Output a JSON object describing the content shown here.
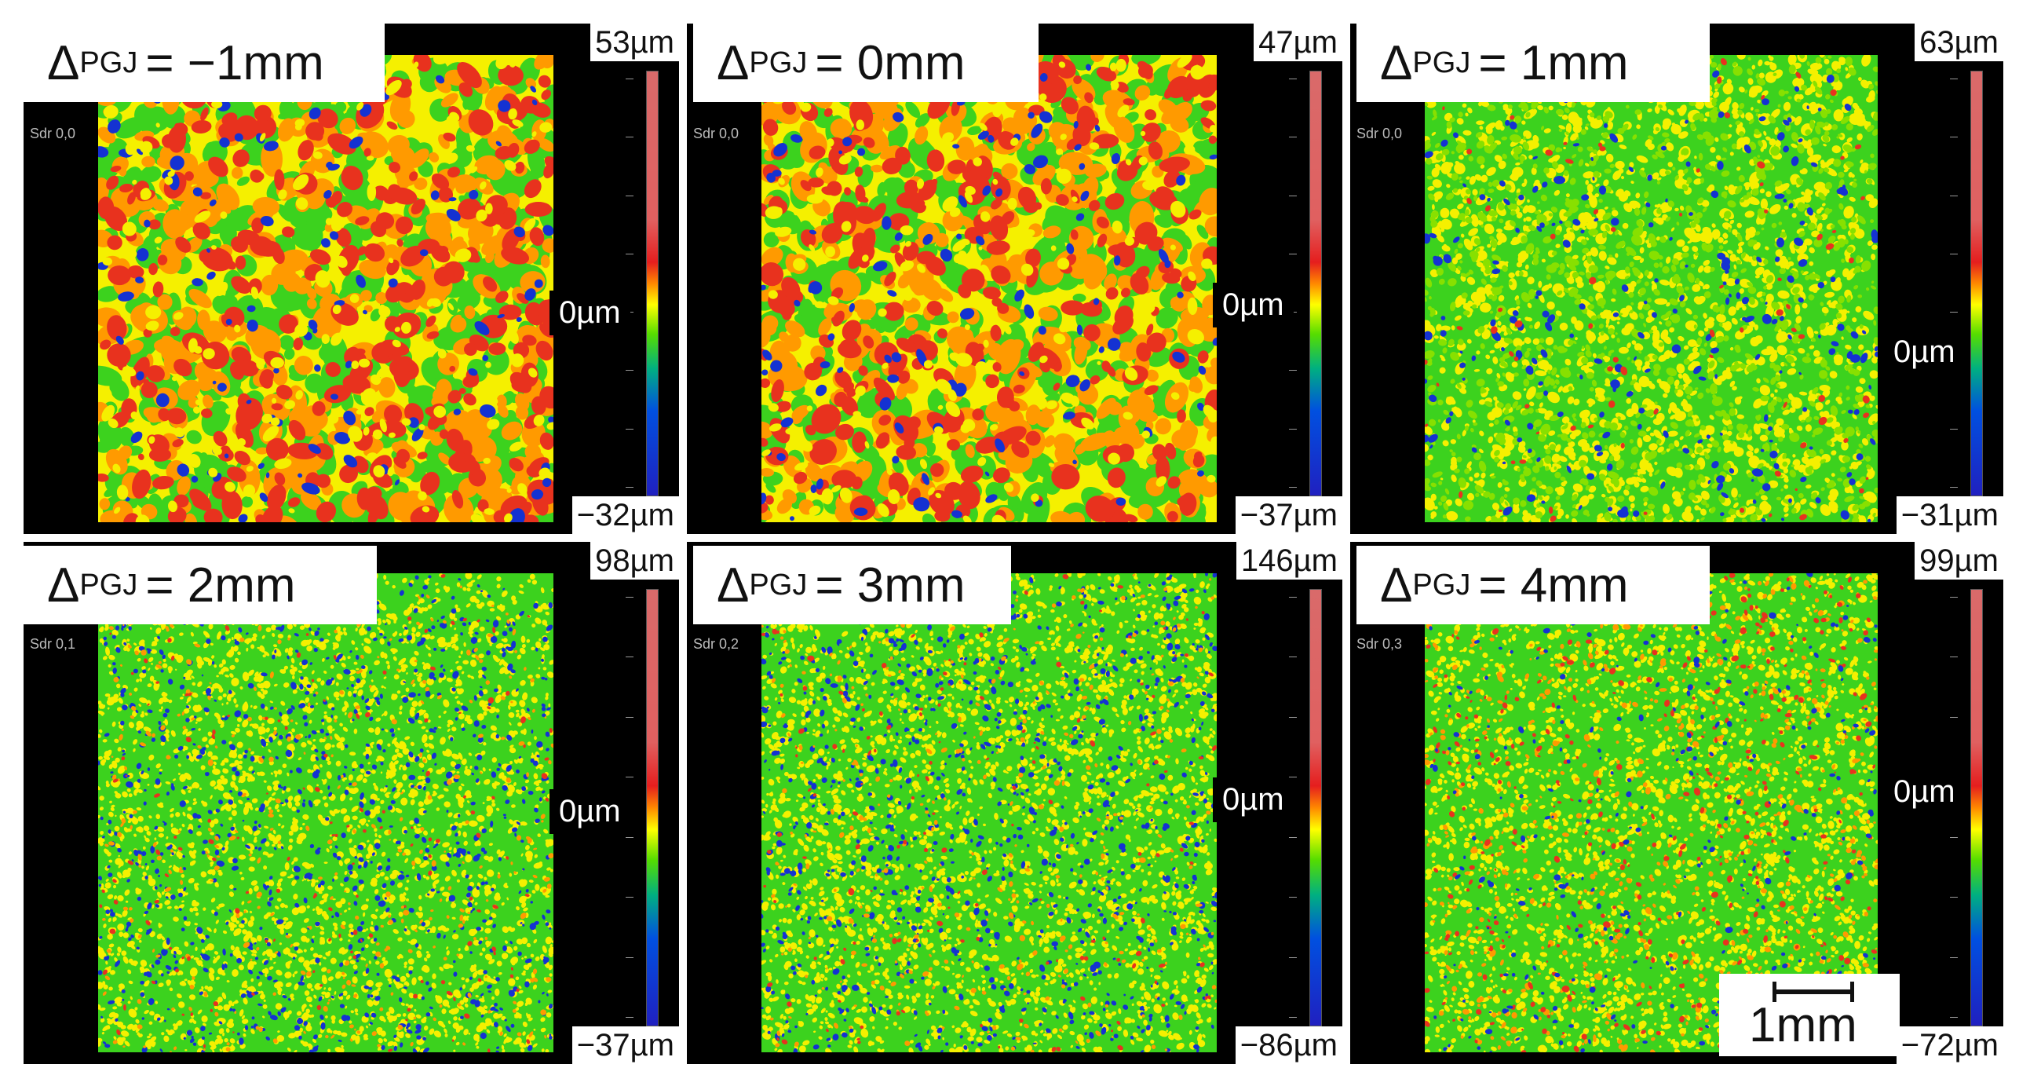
{
  "figure": {
    "panels": [
      {
        "delta_symbol": "Δ",
        "delta_sub": "PGJ",
        "delta_value": "= −1mm",
        "scale_max": "53µm",
        "scale_zero": "0µm",
        "scale_min": "−32µm",
        "sdr": "Sdr 0,0",
        "texture": "coarse-red"
      },
      {
        "delta_symbol": "Δ",
        "delta_sub": "PGJ",
        "delta_value": "= 0mm",
        "scale_max": "47µm",
        "scale_zero": "0µm",
        "scale_min": "−37µm",
        "sdr": "Sdr 0,0",
        "texture": "coarse-red"
      },
      {
        "delta_symbol": "Δ",
        "delta_sub": "PGJ",
        "delta_value": "= 1mm",
        "scale_max": "63µm",
        "scale_zero": "0µm",
        "scale_min": "−31µm",
        "sdr": "Sdr 0,0",
        "texture": "medium-green"
      },
      {
        "delta_symbol": "Δ",
        "delta_sub": "PGJ",
        "delta_value": "= 2mm",
        "scale_max": "98µm",
        "scale_zero": "0µm",
        "scale_min": "−37µm",
        "sdr": "Sdr 0,1",
        "texture": "fine-green"
      },
      {
        "delta_symbol": "Δ",
        "delta_sub": "PGJ",
        "delta_value": "= 3mm",
        "scale_max": "146µm",
        "scale_zero": "0µm",
        "scale_min": "−86µm",
        "sdr": "Sdr 0,2",
        "texture": "fine-green"
      },
      {
        "delta_symbol": "Δ",
        "delta_sub": "PGJ",
        "delta_value": "= 4mm",
        "scale_max": "99µm",
        "scale_zero": "0µm",
        "scale_min": "−72µm",
        "sdr": "Sdr 0,3",
        "texture": "fine-mixed"
      }
    ],
    "scalebar": {
      "label": "1mm"
    },
    "colors": {
      "red": "#e8321e",
      "orange": "#ff9a00",
      "yellow": "#f5f000",
      "green": "#3cd21e",
      "blue": "#1432d2",
      "background": "#000000"
    }
  }
}
